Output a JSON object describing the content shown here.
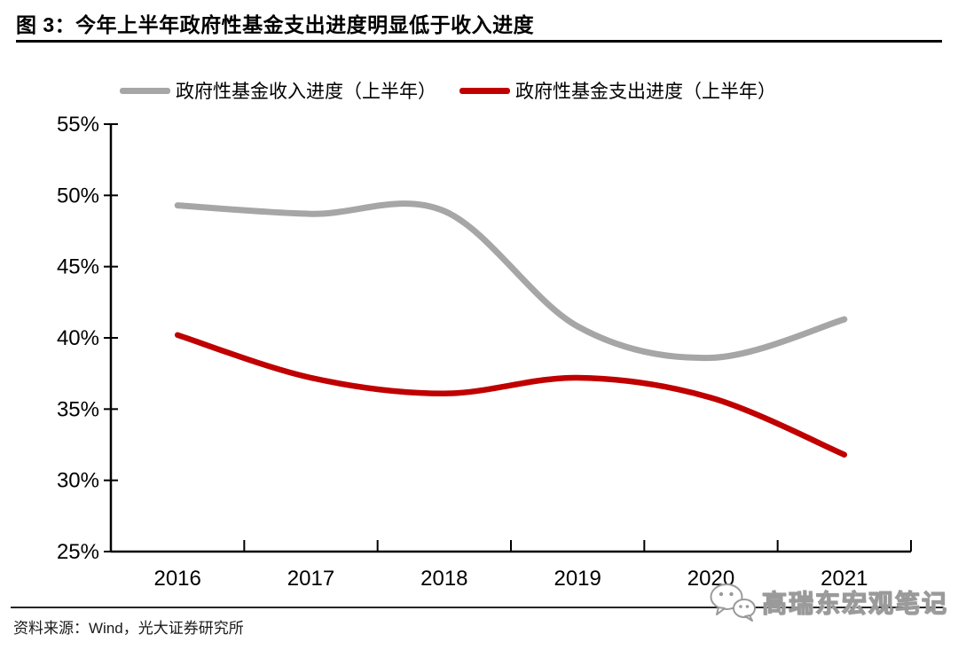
{
  "header": {
    "title": "图 3：今年上半年政府性基金支出进度明显低于收入进度"
  },
  "chart_data": {
    "type": "line",
    "categories": [
      "2016",
      "2017",
      "2018",
      "2019",
      "2020",
      "2021"
    ],
    "series": [
      {
        "name": "政府性基金收入进度（上半年）",
        "color": "#a6a6a6",
        "values": [
          49.3,
          48.7,
          48.9,
          40.8,
          38.6,
          41.3
        ]
      },
      {
        "name": "政府性基金支出进度（上半年）",
        "color": "#c00000",
        "values": [
          40.2,
          37.2,
          36.1,
          37.2,
          35.8,
          31.8
        ]
      }
    ],
    "title": "图 3：今年上半年政府性基金支出进度明显低于收入进度",
    "xlabel": "",
    "ylabel": "",
    "ylim": [
      25,
      55
    ],
    "y_tick_step": 5,
    "y_tick_labels": [
      "55%",
      "50%",
      "45%",
      "40%",
      "35%",
      "30%",
      "25%"
    ],
    "grid": false,
    "legend_position": "top",
    "axis_color": "#000000"
  },
  "footer": {
    "source": "资料来源：Wind，光大证券研究所"
  },
  "watermark": {
    "label": "高瑞东宏观笔记",
    "icon": "wechat-icon"
  }
}
